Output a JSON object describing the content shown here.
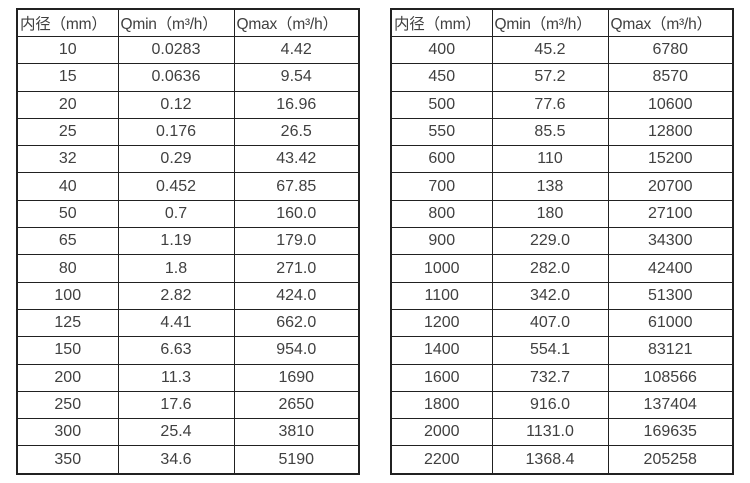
{
  "page": {
    "background": "#ffffff"
  },
  "colors": {
    "border": "#212121",
    "text": "#404040"
  },
  "tables": [
    {
      "name": "flow-spec-table-small-diameters",
      "headers": [
        "内径（mm）",
        "Qmin（m³/h）",
        "Qmax（m³/h）"
      ],
      "rows": [
        [
          "10",
          "0.0283",
          "4.42"
        ],
        [
          "15",
          "0.0636",
          "9.54"
        ],
        [
          "20",
          "0.12",
          "16.96"
        ],
        [
          "25",
          "0.176",
          "26.5"
        ],
        [
          "32",
          "0.29",
          "43.42"
        ],
        [
          "40",
          "0.452",
          "67.85"
        ],
        [
          "50",
          "0.7",
          "160.0"
        ],
        [
          "65",
          "1.19",
          "179.0"
        ],
        [
          "80",
          "1.8",
          "271.0"
        ],
        [
          "100",
          "2.82",
          "424.0"
        ],
        [
          "125",
          "4.41",
          "662.0"
        ],
        [
          "150",
          "6.63",
          "954.0"
        ],
        [
          "200",
          "11.3",
          "1690"
        ],
        [
          "250",
          "17.6",
          "2650"
        ],
        [
          "300",
          "25.4",
          "3810"
        ],
        [
          "350",
          "34.6",
          "5190"
        ]
      ]
    },
    {
      "name": "flow-spec-table-large-diameters",
      "headers": [
        "内径（mm）",
        "Qmin（m³/h）",
        "Qmax（m³/h）"
      ],
      "rows": [
        [
          "400",
          "45.2",
          "6780"
        ],
        [
          "450",
          "57.2",
          "8570"
        ],
        [
          "500",
          "77.6",
          "10600"
        ],
        [
          "550",
          "85.5",
          "12800"
        ],
        [
          "600",
          "110",
          "15200"
        ],
        [
          "700",
          "138",
          "20700"
        ],
        [
          "800",
          "180",
          "27100"
        ],
        [
          "900",
          "229.0",
          "34300"
        ],
        [
          "1000",
          "282.0",
          "42400"
        ],
        [
          "1100",
          "342.0",
          "51300"
        ],
        [
          "1200",
          "407.0",
          "61000"
        ],
        [
          "1400",
          "554.1",
          "83121"
        ],
        [
          "1600",
          "732.7",
          "108566"
        ],
        [
          "1800",
          "916.0",
          "137404"
        ],
        [
          "2000",
          "1131.0",
          "169635"
        ],
        [
          "2200",
          "1368.4",
          "205258"
        ]
      ]
    }
  ]
}
